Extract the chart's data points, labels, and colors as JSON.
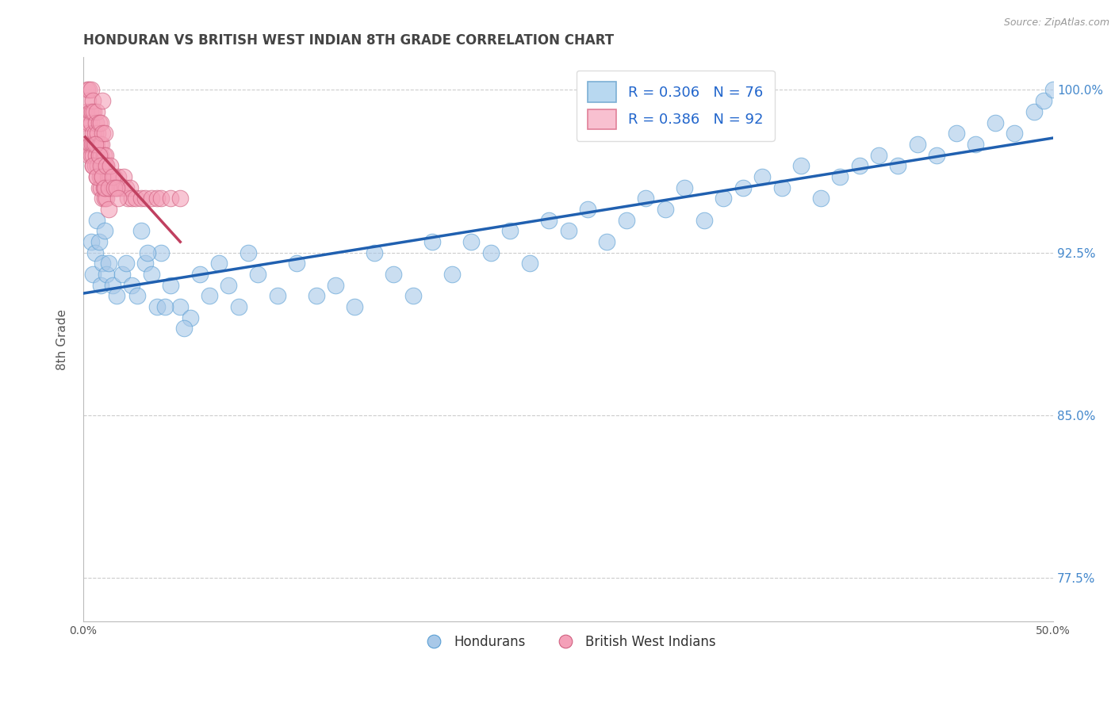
{
  "title": "HONDURAN VS BRITISH WEST INDIAN 8TH GRADE CORRELATION CHART",
  "source": "Source: ZipAtlas.com",
  "ylabel": "8th Grade",
  "legend_labels_bottom": [
    "Hondurans",
    "British West Indians"
  ],
  "blue_color": "#a8c8e8",
  "blue_edge_color": "#5a9fd4",
  "pink_color": "#f4a0b8",
  "pink_edge_color": "#d06080",
  "blue_line_color": "#2060b0",
  "pink_line_color": "#c04060",
  "background_color": "#ffffff",
  "grid_color": "#cccccc",
  "title_color": "#444444",
  "r_blue": 0.306,
  "n_blue": 76,
  "r_pink": 0.386,
  "n_pink": 92,
  "xlim": [
    0.0,
    50.0
  ],
  "ylim": [
    75.5,
    101.5
  ],
  "yticks": [
    77.5,
    85.0,
    92.5,
    100.0
  ],
  "blue_x": [
    0.4,
    0.5,
    0.6,
    0.7,
    0.8,
    0.9,
    1.0,
    1.1,
    1.2,
    1.3,
    1.5,
    1.7,
    2.0,
    2.2,
    2.5,
    2.8,
    3.0,
    3.2,
    3.5,
    3.8,
    4.0,
    4.5,
    5.0,
    5.5,
    6.0,
    6.5,
    7.0,
    7.5,
    8.0,
    9.0,
    10.0,
    11.0,
    12.0,
    13.0,
    14.0,
    15.0,
    16.0,
    17.0,
    18.0,
    19.0,
    20.0,
    21.0,
    22.0,
    23.0,
    24.0,
    25.0,
    26.0,
    27.0,
    28.0,
    29.0,
    30.0,
    31.0,
    32.0,
    33.0,
    34.0,
    35.0,
    36.0,
    37.0,
    38.0,
    39.0,
    40.0,
    41.0,
    42.0,
    43.0,
    44.0,
    45.0,
    46.0,
    47.0,
    48.0,
    49.0,
    49.5,
    50.0,
    3.3,
    4.2,
    5.2,
    8.5
  ],
  "blue_y": [
    93.0,
    91.5,
    92.5,
    94.0,
    93.0,
    91.0,
    92.0,
    93.5,
    91.5,
    92.0,
    91.0,
    90.5,
    91.5,
    92.0,
    91.0,
    90.5,
    93.5,
    92.0,
    91.5,
    90.0,
    92.5,
    91.0,
    90.0,
    89.5,
    91.5,
    90.5,
    92.0,
    91.0,
    90.0,
    91.5,
    90.5,
    92.0,
    90.5,
    91.0,
    90.0,
    92.5,
    91.5,
    90.5,
    93.0,
    91.5,
    93.0,
    92.5,
    93.5,
    92.0,
    94.0,
    93.5,
    94.5,
    93.0,
    94.0,
    95.0,
    94.5,
    95.5,
    94.0,
    95.0,
    95.5,
    96.0,
    95.5,
    96.5,
    95.0,
    96.0,
    96.5,
    97.0,
    96.5,
    97.5,
    97.0,
    98.0,
    97.5,
    98.5,
    98.0,
    99.0,
    99.5,
    100.0,
    92.5,
    90.0,
    89.0,
    92.5
  ],
  "pink_x": [
    0.1,
    0.15,
    0.2,
    0.2,
    0.25,
    0.25,
    0.3,
    0.3,
    0.3,
    0.35,
    0.35,
    0.4,
    0.4,
    0.4,
    0.45,
    0.45,
    0.5,
    0.5,
    0.5,
    0.5,
    0.55,
    0.55,
    0.6,
    0.6,
    0.65,
    0.65,
    0.7,
    0.7,
    0.7,
    0.75,
    0.75,
    0.8,
    0.8,
    0.8,
    0.85,
    0.85,
    0.9,
    0.9,
    0.9,
    0.95,
    0.95,
    1.0,
    1.0,
    1.0,
    1.0,
    1.05,
    1.05,
    1.1,
    1.1,
    1.1,
    1.15,
    1.15,
    1.2,
    1.2,
    1.25,
    1.3,
    1.3,
    1.35,
    1.4,
    1.5,
    1.6,
    1.7,
    1.8,
    1.9,
    2.0,
    2.1,
    2.2,
    2.3,
    2.4,
    2.5,
    2.7,
    3.0,
    3.2,
    3.5,
    3.8,
    4.0,
    4.5,
    5.0,
    0.5,
    0.6,
    0.7,
    0.8,
    0.9,
    1.0,
    1.1,
    1.2,
    1.3,
    1.4,
    1.5,
    1.6,
    1.7,
    1.8
  ],
  "pink_y": [
    98.5,
    99.0,
    97.5,
    100.0,
    98.0,
    99.5,
    97.0,
    98.5,
    100.0,
    97.5,
    99.0,
    97.0,
    98.5,
    100.0,
    97.5,
    99.0,
    96.5,
    98.0,
    99.5,
    97.0,
    97.5,
    99.0,
    96.5,
    98.0,
    97.0,
    98.5,
    96.0,
    97.5,
    99.0,
    96.5,
    98.0,
    95.5,
    97.0,
    98.5,
    96.0,
    97.5,
    95.5,
    97.0,
    98.5,
    96.0,
    97.5,
    95.0,
    96.5,
    98.0,
    99.5,
    95.5,
    97.0,
    95.0,
    96.5,
    98.0,
    95.5,
    97.0,
    95.0,
    96.5,
    96.0,
    94.5,
    96.0,
    95.5,
    96.0,
    95.5,
    96.0,
    95.5,
    96.0,
    95.5,
    95.5,
    96.0,
    95.5,
    95.0,
    95.5,
    95.0,
    95.0,
    95.0,
    95.0,
    95.0,
    95.0,
    95.0,
    95.0,
    95.0,
    96.5,
    97.5,
    96.0,
    97.0,
    96.5,
    96.0,
    95.5,
    96.5,
    95.5,
    96.5,
    96.0,
    95.5,
    95.5,
    95.0
  ]
}
